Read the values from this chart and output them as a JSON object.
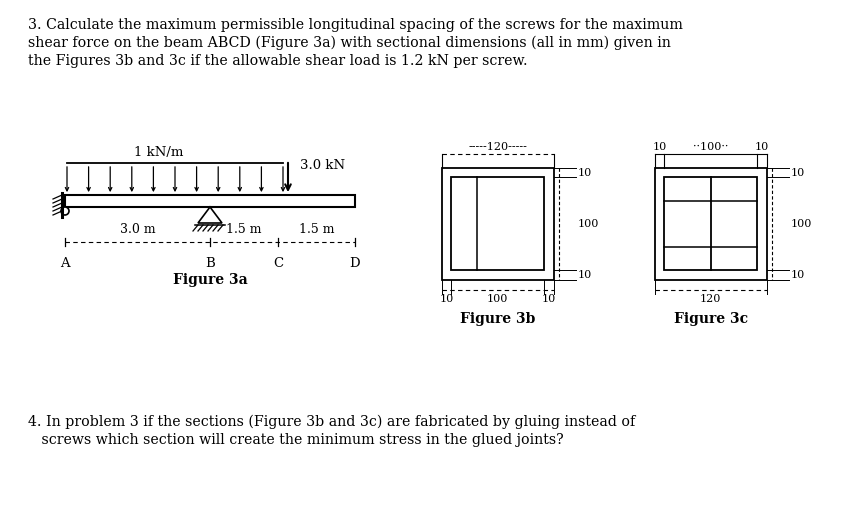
{
  "bg_color": "#ffffff",
  "text_color": "#000000",
  "problem3_line1": "3. Calculate the maximum permissible longitudinal spacing of the screws for the maximum",
  "problem3_line2": "shear force on the beam ABCD (Figure 3a) with sectional dimensions (all in mm) given in",
  "problem3_line3": "the Figures 3b and 3c if the allowable shear load is 1.2 kN per screw.",
  "problem4_line1": "4. In problem 3 if the sections (Figure 3b and 3c) are fabricated by gluing instead of",
  "problem4_line2": "   screws which section will create the minimum stress in the glued joints?",
  "fig3a_label": "Figure 3a",
  "fig3b_label": "Figure 3b",
  "fig3c_label": "Figure 3c",
  "load_label": "1 kN/m",
  "point_load_label": "3.0 kN",
  "dim_3m": "3.0 m",
  "dim_15m_1": "1.5 m",
  "dim_15m_2": "1.5 m",
  "point_A": "A",
  "point_B": "B",
  "point_C": "C",
  "point_D": "D",
  "dim_120_b": "-----120-----",
  "dim_10_right": "10",
  "dim_100_right": "100",
  "dim_10b_bot": "10",
  "dim_100b_bot": "100",
  "dim_10b_bot2": "10",
  "dim_10c_top1": "10",
  "dim_100c_top": "100",
  "dim_10c_top2": "10",
  "dim_120c": "120"
}
